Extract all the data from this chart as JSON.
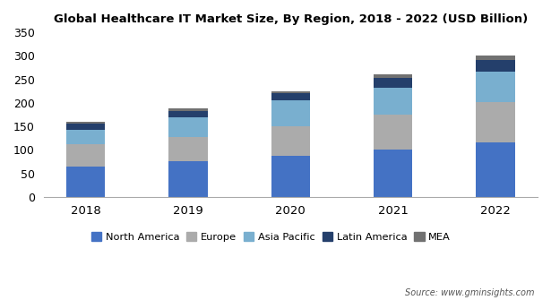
{
  "title": "Global Healthcare IT Market Size, By Region, 2018 - 2022 (USD Billion)",
  "years": [
    2018,
    2019,
    2020,
    2021,
    2022
  ],
  "regions": [
    "North America",
    "Europe",
    "Asia Pacific",
    "Latin America",
    "MEA"
  ],
  "colors": [
    "#4472C4",
    "#ABABAB",
    "#79AFCF",
    "#243F6B",
    "#717171"
  ],
  "data": {
    "North America": [
      65,
      75,
      88,
      100,
      115
    ],
    "Europe": [
      47,
      52,
      62,
      75,
      87
    ],
    "Asia Pacific": [
      30,
      42,
      55,
      58,
      65
    ],
    "Latin America": [
      13,
      14,
      15,
      20,
      25
    ],
    "MEA": [
      5,
      5,
      5,
      7,
      8
    ]
  },
  "ylim": [
    0,
    350
  ],
  "yticks": [
    0,
    50,
    100,
    150,
    200,
    250,
    300,
    350
  ],
  "source_text": "Source: www.gminsights.com",
  "bar_width": 0.38
}
